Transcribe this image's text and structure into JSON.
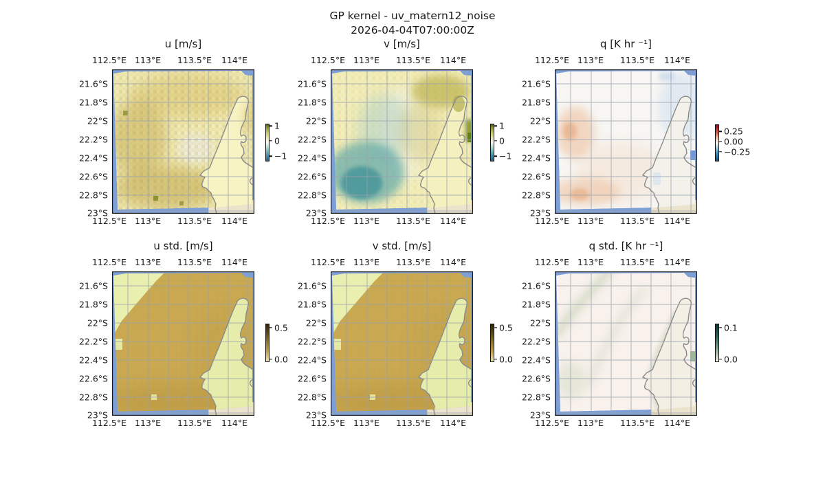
{
  "figure": {
    "suptitle": "GP kernel - uv_matern12_noise",
    "timestamp": "2026-04-04T07:00:00Z"
  },
  "chart_data": [
    {
      "type": "heatmap",
      "panel": "u",
      "title": "u [m/s]",
      "x_ticks": [
        "112.5°E",
        "113°E",
        "113.5°E",
        "114°E"
      ],
      "y_ticks": [
        "21.6°S",
        "21.8°S",
        "22°S",
        "22.2°S",
        "22.4°S",
        "22.6°S",
        "22.8°S",
        "23°S"
      ],
      "lon_range_deg_e": [
        112.4,
        114.5
      ],
      "lat_range_deg_s": [
        21.45,
        23.05
      ],
      "grid": true,
      "colorbar": {
        "range": [
          -1.2,
          1.2
        ],
        "colormap": "diverging olive-white-teal",
        "ticks": [
          {
            "label": "1",
            "pos": 6
          },
          {
            "label": "0",
            "pos": 47
          },
          {
            "label": "−1",
            "pos": 89
          }
        ]
      },
      "field_summary": "Speckled weakly positive field (about 0 to +0.7 m/s, olive) over ocean; pale near-zero patch near 113.5°E 22.3°S; uniform near-zero east of coastline",
      "basemap": "gray coastline, blue ocean margin, beige land corner"
    },
    {
      "type": "heatmap",
      "panel": "v",
      "title": "v [m/s]",
      "x_ticks": [
        "112.5°E",
        "113°E",
        "113.5°E",
        "114°E"
      ],
      "y_ticks": [
        "21.6°S",
        "21.8°S",
        "22°S",
        "22.2°S",
        "22.4°S",
        "22.6°S",
        "22.8°S",
        "23°S"
      ],
      "lon_range_deg_e": [
        112.4,
        114.5
      ],
      "lat_range_deg_s": [
        21.45,
        23.05
      ],
      "grid": true,
      "colorbar": {
        "range": [
          -1.2,
          1.2
        ],
        "colormap": "diverging olive-white-teal",
        "ticks": [
          {
            "label": "1",
            "pos": 6
          },
          {
            "label": "0",
            "pos": 47
          },
          {
            "label": "−1",
            "pos": 89
          }
        ]
      },
      "field_summary": "Negative teal lobe (about −0.5 to −1 m/s) centered near 112.9°E 22.6°S; positive olive patch (about +0.5 to +1) near coast 113.9°E 21.7–22.2°S; near zero elsewhere",
      "basemap": "gray coastline, blue ocean margin, beige land corner"
    },
    {
      "type": "heatmap",
      "panel": "q",
      "title": "q [K hr ⁻¹]",
      "x_ticks": [
        "112.5°E",
        "113°E",
        "113.5°E",
        "114°E"
      ],
      "y_ticks": [
        "21.6°S",
        "21.8°S",
        "22°S",
        "22.2°S",
        "22.4°S",
        "22.6°S",
        "22.8°S",
        "23°S"
      ],
      "lon_range_deg_e": [
        112.4,
        114.5
      ],
      "lat_range_deg_s": [
        21.45,
        23.05
      ],
      "grid": true,
      "colorbar": {
        "range": [
          -0.45,
          0.45
        ],
        "colormap": "diverging red-white-blue",
        "ticks": [
          {
            "label": "0.25",
            "pos": 20
          },
          {
            "label": "0.00",
            "pos": 48
          },
          {
            "label": "−0.25",
            "pos": 76
          }
        ]
      },
      "field_summary": "Near zero overall; weak positive orange patches (about +0.1 to +0.2) near 112.7°E 22.3°S and along 22.9°S; weak negative blue (about −0.1) east of 113.8°E with one strong blue cell at the right edge",
      "basemap": "gray coastline, blue ocean margin, beige land corner"
    },
    {
      "type": "heatmap",
      "panel": "u std.",
      "title": "u std. [m/s]",
      "x_ticks": [
        "112.5°E",
        "113°E",
        "113.5°E",
        "114°E"
      ],
      "y_ticks": [
        "21.6°S",
        "21.8°S",
        "22°S",
        "22.2°S",
        "22.4°S",
        "22.6°S",
        "22.8°S",
        "23°S"
      ],
      "lon_range_deg_e": [
        112.4,
        114.5
      ],
      "lat_range_deg_s": [
        21.45,
        23.05
      ],
      "grid": true,
      "colorbar": {
        "range": [
          0,
          0.55
        ],
        "colormap": "sequential pale-tan-dark",
        "ticks": [
          {
            "label": "0.5",
            "pos": 11
          },
          {
            "label": "0.0",
            "pos": 96
          }
        ]
      },
      "field_summary": "Std about 0.3–0.4 (tan) over open ocean; low std (about 0.05–0.1, pale green) in upper-left diagonal region and over land east of the coastline",
      "basemap": "gray coastline, blue ocean margin, beige land corner"
    },
    {
      "type": "heatmap",
      "panel": "v std.",
      "title": "v std. [m/s]",
      "x_ticks": [
        "112.5°E",
        "113°E",
        "113.5°E",
        "114°E"
      ],
      "y_ticks": [
        "21.6°S",
        "21.8°S",
        "22°S",
        "22.2°S",
        "22.4°S",
        "22.6°S",
        "22.8°S",
        "23°S"
      ],
      "lon_range_deg_e": [
        112.4,
        114.5
      ],
      "lat_range_deg_s": [
        21.45,
        23.05
      ],
      "grid": true,
      "colorbar": {
        "range": [
          0,
          0.55
        ],
        "colormap": "sequential pale-tan-dark",
        "ticks": [
          {
            "label": "0.5",
            "pos": 11
          },
          {
            "label": "0.0",
            "pos": 96
          }
        ]
      },
      "field_summary": "Std about 0.3–0.4 (tan) over open ocean; low std (pale green) in upper-left diagonal region and over land east of the coastline; pattern nearly identical to u std.",
      "basemap": "gray coastline, blue ocean margin, beige land corner"
    },
    {
      "type": "heatmap",
      "panel": "q std.",
      "title": "q std. [K hr ⁻¹]",
      "x_ticks": [
        "112.5°E",
        "113°E",
        "113.5°E",
        "114°E"
      ],
      "y_ticks": [
        "21.6°S",
        "21.8°S",
        "22°S",
        "22.2°S",
        "22.4°S",
        "22.6°S",
        "22.8°S",
        "23°S"
      ],
      "lon_range_deg_e": [
        112.4,
        114.5
      ],
      "lat_range_deg_s": [
        21.45,
        23.05
      ],
      "grid": true,
      "colorbar": {
        "range": [
          0,
          0.11
        ],
        "colormap": "sequential pale-dark teal",
        "ticks": [
          {
            "label": "0.1",
            "pos": 11
          },
          {
            "label": "0.0",
            "pos": 96
          }
        ]
      },
      "field_summary": "Std mostly below 0.02 (very pale); faint sage-green bands (about 0.03–0.05) along the data-swath diagonal and west of the coastline; one dark green cell at right edge",
      "basemap": "gray coastline, blue ocean margin, beige land corner"
    }
  ],
  "colors": {
    "ocean_margin": "#7d9fd8",
    "land_corner": "#ece3cd",
    "gridlines": "#9aa3ae",
    "coastline": "#8a8a8a",
    "u_base": "#f6f2c1",
    "speckle_olive": "#b49c42",
    "v_negative_teal": "#3f9198",
    "v_positive_olive": "#b3a83c",
    "q_positive_orange": "#eec2a0",
    "q_negative_blue": "#dbe6f1",
    "std_high_tan": "#c9a850",
    "std_low_green": "#e9efae",
    "qstd_base": "#f8f1ec",
    "qstd_band": "#c7d2b8"
  }
}
